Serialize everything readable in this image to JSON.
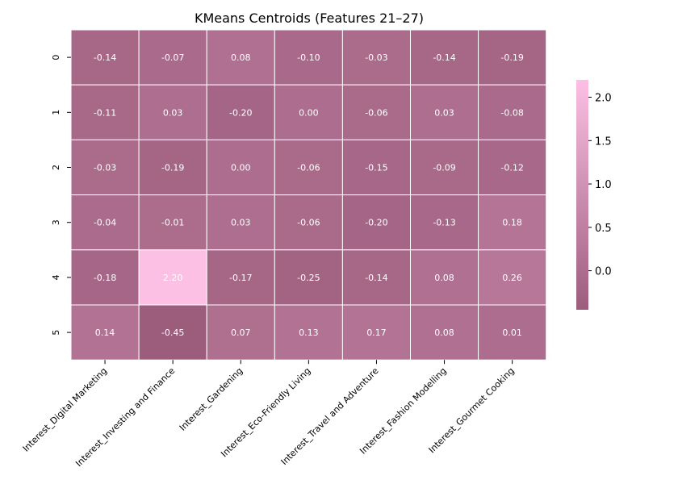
{
  "chart_data": {
    "type": "heatmap",
    "title": "KMeans Centroids (Features 21–27)",
    "xlabel": "",
    "ylabel": "",
    "x_categories": [
      "Interest_Digital Marketing",
      "Interest_Investing and Finance",
      "Interest_Gardening",
      "Interest_Eco-Friendly Living",
      "Interest_Travel and Adventure",
      "Interest_Fashion Modelling",
      "Interest_Gourmet Cooking"
    ],
    "y_categories": [
      "0",
      "1",
      "2",
      "3",
      "4",
      "5"
    ],
    "values": [
      [
        -0.14,
        -0.07,
        0.08,
        -0.1,
        -0.03,
        -0.14,
        -0.19
      ],
      [
        -0.11,
        0.03,
        -0.2,
        0.0,
        -0.06,
        0.03,
        -0.08
      ],
      [
        -0.03,
        -0.19,
        0.0,
        -0.06,
        -0.15,
        -0.09,
        -0.12
      ],
      [
        -0.04,
        -0.01,
        0.03,
        -0.06,
        -0.2,
        -0.13,
        0.18
      ],
      [
        -0.18,
        2.2,
        -0.17,
        -0.25,
        -0.14,
        0.08,
        0.26
      ],
      [
        0.14,
        -0.45,
        0.07,
        0.13,
        0.17,
        0.08,
        0.01
      ]
    ],
    "vmin": -0.45,
    "vmax": 2.2,
    "colorbar_ticks": [
      "0.0",
      "0.5",
      "1.0",
      "1.5",
      "2.0"
    ],
    "colormap": {
      "low": "#9c5c7c",
      "high": "#fcc0e4"
    },
    "annotation_color": "#ffffff",
    "grid_line_color": "#ffffff"
  }
}
